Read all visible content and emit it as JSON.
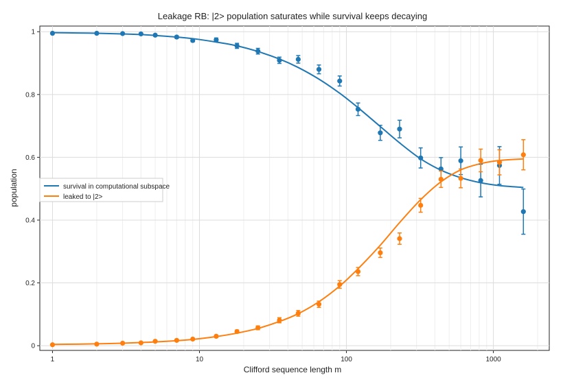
{
  "chart_data": {
    "type": "scatter",
    "title": "Leakage RB: |2> population saturates while survival keeps decaying",
    "xlabel": "Clifford sequence length m",
    "ylabel": "population",
    "xscale": "log",
    "xlim": [
      0.82,
      2400
    ],
    "ylim": [
      -0.015,
      1.018
    ],
    "xticks": [
      {
        "value": 1,
        "label": "1"
      },
      {
        "value": 10,
        "label": "10"
      },
      {
        "value": 100,
        "label": "100"
      },
      {
        "value": 1000,
        "label": "1000"
      }
    ],
    "yticks": [
      {
        "value": 0,
        "label": "0"
      },
      {
        "value": 0.2,
        "label": "0.2"
      },
      {
        "value": 0.4,
        "label": "0.4"
      },
      {
        "value": 0.6,
        "label": "0.6"
      },
      {
        "value": 0.8,
        "label": "0.8"
      },
      {
        "value": 1,
        "label": "1"
      }
    ],
    "grid": true,
    "legend_position": "center-left",
    "x": [
      1,
      2,
      3,
      4,
      5,
      7,
      9,
      13,
      18,
      25,
      35,
      47,
      65,
      90,
      120,
      170,
      230,
      320,
      440,
      600,
      820,
      1100,
      1600
    ],
    "series": [
      {
        "name": "survival in computational subspace",
        "color": "#1f77b4",
        "values": [
          0.995,
          0.995,
          0.994,
          0.993,
          0.989,
          0.983,
          0.972,
          0.974,
          0.955,
          0.938,
          0.909,
          0.912,
          0.88,
          0.843,
          0.753,
          0.678,
          0.69,
          0.598,
          0.563,
          0.589,
          0.526,
          0.574,
          0.427
        ],
        "errors": [
          0.001,
          0.002,
          0.002,
          0.002,
          0.003,
          0.004,
          0.004,
          0.006,
          0.008,
          0.009,
          0.01,
          0.012,
          0.014,
          0.016,
          0.02,
          0.024,
          0.028,
          0.032,
          0.036,
          0.044,
          0.052,
          0.06,
          0.072
        ],
        "fit_x": [
          1,
          1.5,
          2,
          3,
          4,
          5,
          7,
          9,
          13,
          18,
          25,
          35,
          47,
          65,
          90,
          120,
          170,
          230,
          320,
          440,
          600,
          820,
          1100,
          1600
        ],
        "fit": [
          0.997,
          0.996,
          0.995,
          0.993,
          0.991,
          0.988,
          0.983,
          0.978,
          0.967,
          0.955,
          0.937,
          0.913,
          0.886,
          0.849,
          0.804,
          0.758,
          0.698,
          0.646,
          0.595,
          0.559,
          0.535,
          0.519,
          0.51,
          0.504
        ]
      },
      {
        "name": "leaked to |2>",
        "color": "#ff7f0e",
        "values": [
          0.003,
          0.005,
          0.008,
          0.009,
          0.014,
          0.017,
          0.021,
          0.03,
          0.045,
          0.057,
          0.081,
          0.103,
          0.132,
          0.195,
          0.236,
          0.296,
          0.341,
          0.447,
          0.53,
          0.533,
          0.59,
          0.584,
          0.608
        ],
        "errors": [
          0.001,
          0.001,
          0.002,
          0.002,
          0.003,
          0.003,
          0.003,
          0.004,
          0.005,
          0.006,
          0.008,
          0.009,
          0.01,
          0.012,
          0.013,
          0.015,
          0.018,
          0.022,
          0.026,
          0.03,
          0.036,
          0.04,
          0.048
        ],
        "fit_x": [
          1,
          1.5,
          2,
          3,
          4,
          5,
          7,
          9,
          13,
          18,
          25,
          35,
          47,
          65,
          90,
          120,
          170,
          230,
          320,
          440,
          600,
          820,
          1100,
          1600
        ],
        "fit": [
          0.004,
          0.005,
          0.006,
          0.008,
          0.01,
          0.012,
          0.016,
          0.02,
          0.029,
          0.04,
          0.055,
          0.077,
          0.102,
          0.14,
          0.19,
          0.245,
          0.32,
          0.392,
          0.465,
          0.522,
          0.56,
          0.58,
          0.59,
          0.595
        ]
      }
    ]
  }
}
